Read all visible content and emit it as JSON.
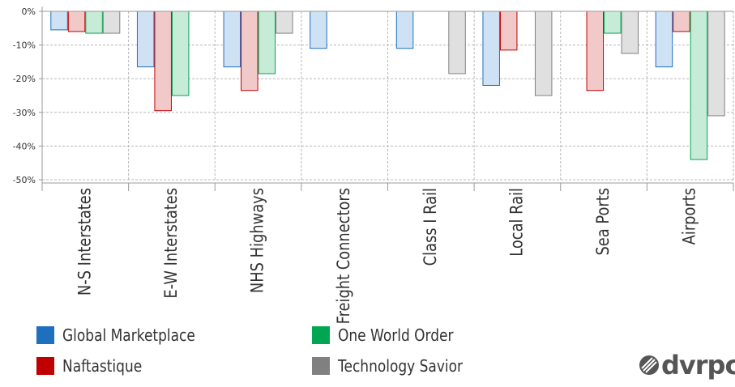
{
  "chart_data": {
    "type": "bar",
    "categories": [
      "N-S Interstates",
      "E-W Interstates",
      "NHS Highways",
      "Freight Connectors",
      "Class I Rail",
      "Local Rail",
      "Sea Ports",
      "Airports"
    ],
    "series": [
      {
        "name": "Global Marketplace",
        "color": "#1f6fbf",
        "fill": "#cfe2f3",
        "values": [
          -5.5,
          -16.5,
          -16.5,
          -11,
          -11,
          -22,
          null,
          -16.5
        ]
      },
      {
        "name": "Naftastique",
        "color": "#c00000",
        "fill": "#f2c9c9",
        "values": [
          -6,
          -29.5,
          -23.5,
          null,
          null,
          -11.5,
          -23.5,
          -6
        ]
      },
      {
        "name": "One World Order",
        "color": "#00a651",
        "fill": "#c6ecd7",
        "values": [
          -6.5,
          -25,
          -18.5,
          null,
          null,
          null,
          -6.5,
          -44
        ]
      },
      {
        "name": "Technology Savior",
        "color": "#808080",
        "fill": "#e0e0e0",
        "values": [
          -6.5,
          null,
          -6.5,
          null,
          -18.5,
          -25,
          -12.5,
          -31
        ]
      }
    ],
    "ylim": [
      -50,
      0
    ],
    "yticks": [
      "0%",
      "-10%",
      "-20%",
      "-30%",
      "-40%",
      "-50%"
    ],
    "ytick_values": [
      0,
      -10,
      -20,
      -30,
      -40,
      -50
    ],
    "grid": true,
    "legend_position": "bottom-left"
  },
  "legend": [
    {
      "label": "Global Marketplace",
      "color": "#1f6fbf"
    },
    {
      "label": "One World Order",
      "color": "#00a651"
    },
    {
      "label": "Naftastique",
      "color": "#c00000"
    },
    {
      "label": "Technology Savior",
      "color": "#808080"
    }
  ],
  "logo": {
    "text": "dvrpc"
  }
}
